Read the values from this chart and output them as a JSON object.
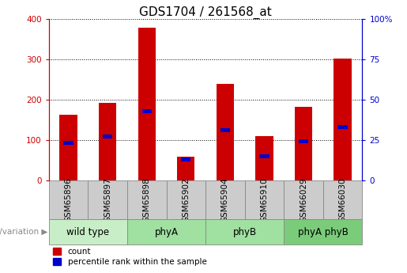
{
  "title": "GDS1704 / 261568_at",
  "samples": [
    "GSM65896",
    "GSM65897",
    "GSM65898",
    "GSM65902",
    "GSM65904",
    "GSM65910",
    "GSM66029",
    "GSM66030"
  ],
  "counts": [
    163,
    192,
    378,
    58,
    240,
    110,
    182,
    302
  ],
  "percentile_ranks": [
    23,
    27,
    43,
    13,
    31,
    15,
    24,
    33
  ],
  "group_defs": [
    {
      "label": "wild type",
      "start": 0,
      "end": 1,
      "color": "#c8eec8"
    },
    {
      "label": "phyA",
      "start": 2,
      "end": 3,
      "color": "#a0e0a0"
    },
    {
      "label": "phyB",
      "start": 4,
      "end": 5,
      "color": "#a0e0a0"
    },
    {
      "label": "phyA phyB",
      "start": 6,
      "end": 7,
      "color": "#7acc7a"
    }
  ],
  "ylim_left": [
    0,
    400
  ],
  "ylim_right": [
    0,
    100
  ],
  "yticks_left": [
    0,
    100,
    200,
    300,
    400
  ],
  "yticks_right": [
    0,
    25,
    50,
    75,
    100
  ],
  "bar_color": "#cc0000",
  "percentile_color": "#0000cc",
  "grid_color": "#000000",
  "bar_width": 0.45,
  "sample_box_color": "#cccccc",
  "sample_box_edge": "#888888",
  "genotype_label": "genotype/variation",
  "legend_count_label": "count",
  "legend_percentile_label": "percentile rank within the sample",
  "title_fontsize": 11,
  "tick_fontsize": 7.5,
  "label_fontsize": 8.5
}
